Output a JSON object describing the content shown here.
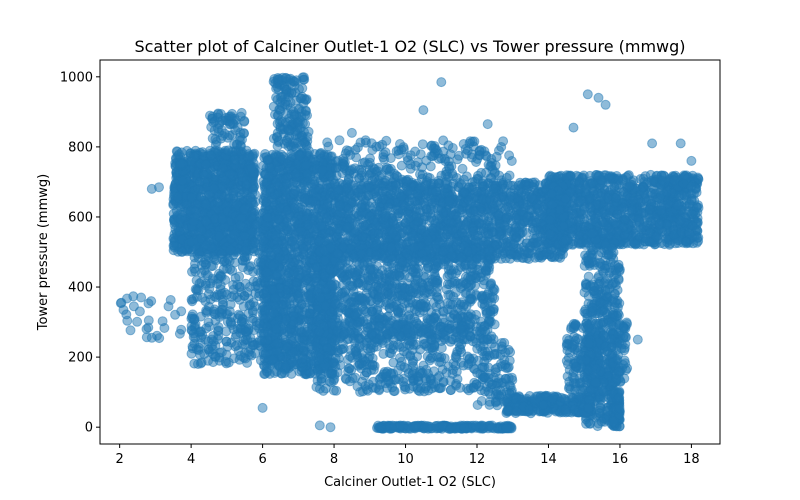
{
  "chart_data": {
    "type": "scatter",
    "title": "Scatter plot of Calciner Outlet-1 O2 (SLC) vs Tower pressure (mmwg)",
    "xlabel": "Calciner Outlet-1 O2 (SLC)",
    "ylabel": "Tower pressure (mmwg)",
    "xlim": [
      1.45,
      18.8
    ],
    "ylim": [
      -48,
      1048
    ],
    "xticks": [
      2,
      4,
      6,
      8,
      10,
      12,
      14,
      16,
      18
    ],
    "yticks": [
      0,
      200,
      400,
      600,
      800,
      1000
    ],
    "marker_color": "#1f77b4",
    "marker_alpha": 0.5,
    "grid": false,
    "series": [
      {
        "clusters": [
          {
            "x": [
              3.5,
              5.8
            ],
            "y": [
              500,
              790
            ],
            "n": 1100
          },
          {
            "x": [
              6.0,
              8.0
            ],
            "y": [
              150,
              780
            ],
            "n": 1500
          },
          {
            "x": [
              4.0,
              6.5
            ],
            "y": [
              180,
              600
            ],
            "n": 500
          },
          {
            "x": [
              8.0,
              14.5
            ],
            "y": [
              480,
              700
            ],
            "n": 1600
          },
          {
            "x": [
              7.5,
              12.5
            ],
            "y": [
              250,
              520
            ],
            "n": 900
          },
          {
            "x": [
              7.5,
              12.0
            ],
            "y": [
              100,
              300
            ],
            "n": 400
          },
          {
            "x": [
              14.0,
              18.2
            ],
            "y": [
              520,
              720
            ],
            "n": 1100
          },
          {
            "x": [
              15.0,
              16.0
            ],
            "y": [
              0,
              560
            ],
            "n": 450
          },
          {
            "x": [
              14.5,
              16.2
            ],
            "y": [
              100,
              300
            ],
            "n": 250
          },
          {
            "x": [
              12.8,
              15.2
            ],
            "y": [
              40,
              90
            ],
            "n": 250
          },
          {
            "x": [
              9.2,
              13.0
            ],
            "y": [
              -5,
              5
            ],
            "n": 200
          },
          {
            "x": [
              6.3,
              7.3
            ],
            "y": [
              800,
              1000
            ],
            "n": 150
          },
          {
            "x": [
              4.5,
              5.5
            ],
            "y": [
              800,
              900
            ],
            "n": 60
          },
          {
            "x": [
              6.8,
              13.0
            ],
            "y": [
              700,
              820
            ],
            "n": 250
          },
          {
            "x": [
              2.0,
              3.8
            ],
            "y": [
              250,
              380
            ],
            "n": 25
          },
          {
            "x": [
              15.8,
              16.0
            ],
            "y": [
              0,
              100
            ],
            "n": 60
          },
          {
            "x": [
              12.0,
              13.0
            ],
            "y": [
              60,
              250
            ],
            "n": 100
          }
        ],
        "points": [
          [
            2.05,
            355
          ],
          [
            2.4,
            345
          ],
          [
            2.6,
            370
          ],
          [
            2.9,
            680
          ],
          [
            3.1,
            685
          ],
          [
            2.9,
            255
          ],
          [
            11.0,
            985
          ],
          [
            10.5,
            905
          ],
          [
            15.1,
            950
          ],
          [
            15.4,
            940
          ],
          [
            15.6,
            920
          ],
          [
            7.9,
            0
          ],
          [
            7.6,
            5
          ],
          [
            8.5,
            840
          ],
          [
            12.3,
            865
          ],
          [
            14.7,
            855
          ],
          [
            16.5,
            250
          ],
          [
            6.0,
            55
          ],
          [
            18.0,
            760
          ],
          [
            17.7,
            810
          ],
          [
            16.9,
            810
          ]
        ]
      }
    ]
  }
}
